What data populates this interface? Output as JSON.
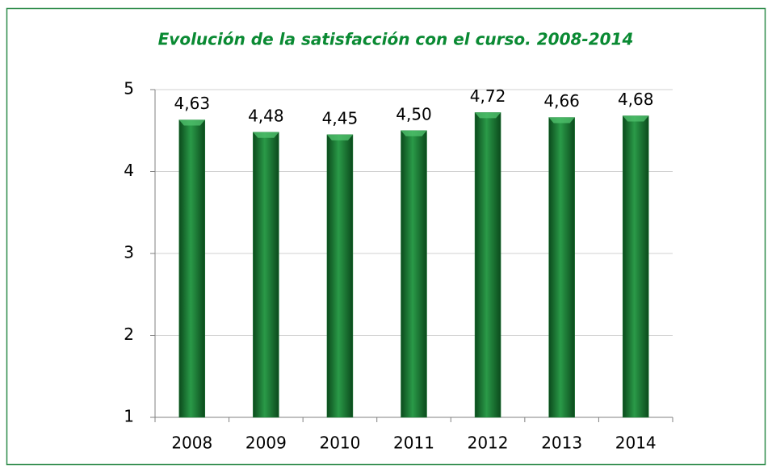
{
  "chart_data": {
    "type": "bar",
    "title": "Evolución de la satisfacción con el curso. 2008-2014",
    "categories": [
      "2008",
      "2009",
      "2010",
      "2011",
      "2012",
      "2013",
      "2014"
    ],
    "values": [
      4.63,
      4.48,
      4.45,
      4.5,
      4.72,
      4.66,
      4.68
    ],
    "value_labels": [
      "4,63",
      "4,48",
      "4,45",
      "4,50",
      "4,72",
      "4,66",
      "4,68"
    ],
    "color": "#1a7a33",
    "ylim": [
      1,
      5
    ],
    "yticks": [
      1,
      2,
      3,
      4,
      5
    ],
    "grid": true
  }
}
